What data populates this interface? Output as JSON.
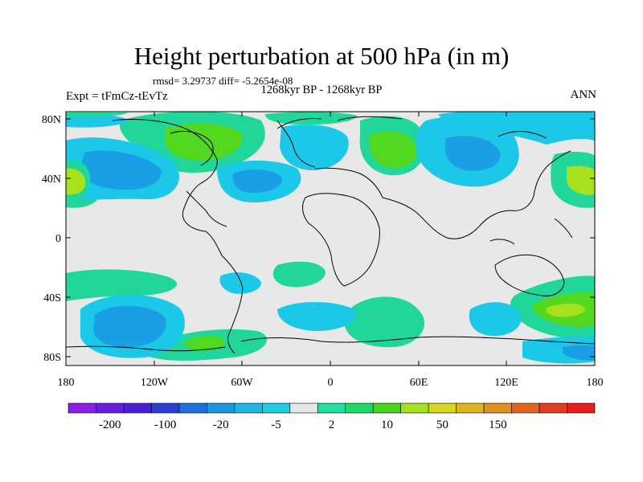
{
  "title": "Height perturbation at 500 hPa (in m)",
  "stats": "rmsd= 3.29737 diff= -5.2654e-08",
  "period": "1268kyr BP - 1268kyr BP",
  "expt": "Expt = tFmCz-tEvTz",
  "season": "ANN",
  "lat_ticks": [
    "80N",
    "40N",
    "0",
    "40S",
    "80S"
  ],
  "lon_ticks": [
    "180",
    "120W",
    "60W",
    "0",
    "60E",
    "120E",
    "180"
  ],
  "colorbar": {
    "colors": [
      "#8c1fe6",
      "#6a1ee0",
      "#4a1fd6",
      "#2a3fd6",
      "#1f6fe0",
      "#1f97e0",
      "#1fb6e6",
      "#1ecde6",
      "#e6e6e6",
      "#1ee0a0",
      "#1ed86a",
      "#46d61e",
      "#a6e01e",
      "#d6d61e",
      "#e0b41e",
      "#e0901e",
      "#e0661e",
      "#e0401e",
      "#e61e1e"
    ],
    "labels": [
      "-200",
      "-100",
      "-20",
      "-5",
      "2",
      "10",
      "50",
      "150"
    ]
  },
  "palette": {
    "bg": "#e8e8e8",
    "c1": "#20d69a",
    "c2": "#52d81e",
    "c3": "#a8e01e",
    "n1": "#1cc8e8",
    "n2": "#1a9ee6",
    "land": "#000000"
  }
}
